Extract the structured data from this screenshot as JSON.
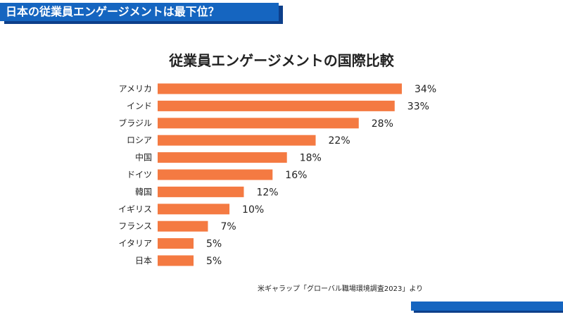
{
  "banner": {
    "title": "日本の従業員エンゲージメントは最下位？"
  },
  "colors": {
    "bar": "#f47a42",
    "banner": "#1565c0",
    "banner_shadow": "#0d3f8a"
  },
  "chart_data": {
    "type": "bar",
    "orientation": "horizontal",
    "title": "従業員エンゲージメントの国際比較",
    "categories": [
      "アメリカ",
      "インド",
      "ブラジル",
      "ロシア",
      "中国",
      "ドイツ",
      "韓国",
      "イギリス",
      "フランス",
      "イタリア",
      "日本"
    ],
    "values": [
      34,
      33,
      28,
      22,
      18,
      16,
      12,
      10,
      7,
      5,
      5
    ],
    "data_labels": [
      "34%",
      "33%",
      "28%",
      "22%",
      "18%",
      "16%",
      "12%",
      "10%",
      "7%",
      "5%",
      "5%"
    ],
    "unit": "%",
    "xlim": [
      0,
      34
    ],
    "grid": false,
    "legend": "none"
  },
  "source_note": "米ギャラップ「グローバル職場環境調査2023」より"
}
